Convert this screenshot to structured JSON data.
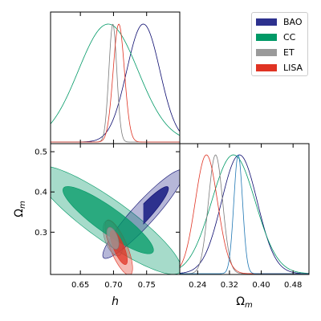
{
  "chart_data": {
    "type": "corner",
    "parameters": [
      {
        "name": "h",
        "label": "h",
        "ticks": [
          0.65,
          0.7,
          0.75
        ],
        "tick_labels": [
          "0.65",
          "0.70",
          "0.75"
        ],
        "range": [
          0.605,
          0.8
        ]
      },
      {
        "name": "omega_m",
        "label": "Ωm",
        "label_base": "Ω",
        "label_sub": "m",
        "ticks": [
          0.24,
          0.32,
          0.4,
          0.48
        ],
        "tick_labels": [
          "0.24",
          "0.32",
          "0.40",
          "0.48"
        ],
        "y_ticks": [
          0.3,
          0.4,
          0.5
        ],
        "y_tick_labels": [
          "0.3",
          "0.4",
          "0.5"
        ],
        "range": [
          0.195,
          0.52
        ]
      }
    ],
    "legend_placement": "top-right",
    "series": [
      {
        "name": "BAO",
        "color": "#0a0a6e",
        "fill": "#2d318e",
        "h_mean": 0.745,
        "h_sd": 0.025,
        "om_mean": 0.345,
        "om_sd": 0.045,
        "corr": 0.93,
        "one_sigma_clip": [
          0.745,
          0.815
        ]
      },
      {
        "name": "CC",
        "color": "#009966",
        "fill": "#009966",
        "h_mean": 0.692,
        "h_sd": 0.045,
        "om_mean": 0.33,
        "om_sd": 0.055,
        "corr": -0.89
      },
      {
        "name": "ET",
        "color": "#7a7a7a",
        "fill": "#9a9a9a",
        "h_mean": 0.699,
        "h_sd": 0.006,
        "om_mean": 0.285,
        "om_sd": 0.018,
        "corr": -0.5
      },
      {
        "name": "LISA",
        "color": "#e03323",
        "fill": "#e03323",
        "h_mean": 0.708,
        "h_sd": 0.0085,
        "om_mean": 0.262,
        "om_sd": 0.028,
        "corr": -0.75
      }
    ],
    "blue_line_1d": {
      "color": "#1f77b4",
      "om_mean": 0.342,
      "om_sd": 0.011
    }
  }
}
